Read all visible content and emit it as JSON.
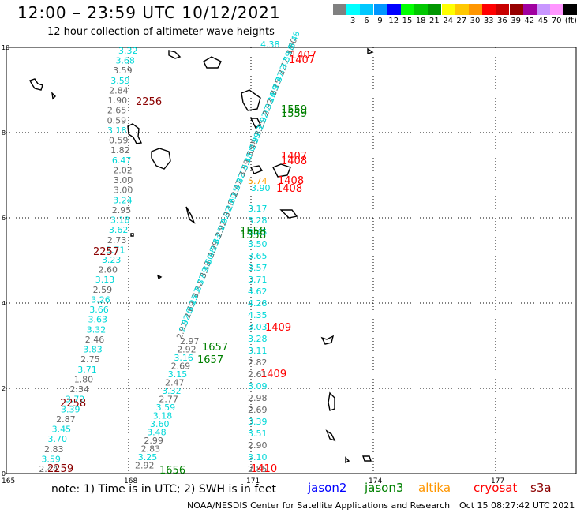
{
  "header": {
    "title": "12:00 – 23:59 UTC 10/12/2021",
    "subtitle": "12 hour collection of altimeter wave heights"
  },
  "scale": {
    "unit": "(ft)",
    "items": [
      {
        "label": "",
        "color": "#808080"
      },
      {
        "label": "3",
        "color": "#00ffff"
      },
      {
        "label": "6",
        "color": "#00c8ff"
      },
      {
        "label": "9",
        "color": "#0096ff"
      },
      {
        "label": "12",
        "color": "#0000ff"
      },
      {
        "label": "15",
        "color": "#00ff00"
      },
      {
        "label": "18",
        "color": "#00c800"
      },
      {
        "label": "21",
        "color": "#009600"
      },
      {
        "label": "24",
        "color": "#ffff00"
      },
      {
        "label": "27",
        "color": "#ffc800"
      },
      {
        "label": "30",
        "color": "#ff9600"
      },
      {
        "label": "33",
        "color": "#ff0000"
      },
      {
        "label": "36",
        "color": "#c80000"
      },
      {
        "label": "39",
        "color": "#960000"
      },
      {
        "label": "42",
        "color": "#a000a0"
      },
      {
        "label": "45",
        "color": "#c896ff"
      },
      {
        "label": "70",
        "color": "#ff96ff"
      },
      {
        "label": "",
        "color": "#000000"
      }
    ]
  },
  "axes": {
    "x_ticks": [
      "165",
      "168",
      "171",
      "174",
      "177"
    ],
    "y_ticks": [
      "0",
      "2",
      "4",
      "6",
      "8",
      "10"
    ]
  },
  "tracks": {
    "left_track": [
      {
        "v": "3.32",
        "c": "#00d8d8"
      },
      {
        "v": "3.68",
        "c": "#00d8d8"
      },
      {
        "v": "3.59",
        "c": "#666666"
      },
      {
        "v": "3.59",
        "c": "#00d8d8"
      },
      {
        "v": "2.84",
        "c": "#666666"
      },
      {
        "v": "1.90",
        "c": "#666666"
      },
      {
        "v": "2.65",
        "c": "#666666"
      },
      {
        "v": "0.59",
        "c": "#666666"
      },
      {
        "v": "3.18",
        "c": "#00d8d8"
      },
      {
        "v": "0.59",
        "c": "#666666"
      },
      {
        "v": "1.82",
        "c": "#666666"
      },
      {
        "v": "6.47",
        "c": "#00d8d8"
      },
      {
        "v": "2.02",
        "c": "#666666"
      },
      {
        "v": "3.00",
        "c": "#666666"
      },
      {
        "v": "3.00",
        "c": "#666666"
      },
      {
        "v": "3.24",
        "c": "#00d8d8"
      },
      {
        "v": "2.95",
        "c": "#666666"
      },
      {
        "v": "3.18",
        "c": "#00d8d8"
      },
      {
        "v": "3.62",
        "c": "#00d8d8"
      },
      {
        "v": "2.73",
        "c": "#666666"
      },
      {
        "v": "3.71",
        "c": "#00d8d8"
      },
      {
        "v": "3.23",
        "c": "#00d8d8"
      },
      {
        "v": "2.60",
        "c": "#666666"
      },
      {
        "v": "3.13",
        "c": "#00d8d8"
      },
      {
        "v": "2.59",
        "c": "#666666"
      },
      {
        "v": "3.26",
        "c": "#00d8d8"
      },
      {
        "v": "3.66",
        "c": "#00d8d8"
      },
      {
        "v": "3.63",
        "c": "#00d8d8"
      },
      {
        "v": "3.32",
        "c": "#00d8d8"
      },
      {
        "v": "2.46",
        "c": "#666666"
      },
      {
        "v": "3.83",
        "c": "#00d8d8"
      },
      {
        "v": "2.75",
        "c": "#666666"
      },
      {
        "v": "3.71",
        "c": "#00d8d8"
      },
      {
        "v": "1.80",
        "c": "#666666"
      },
      {
        "v": "2.34",
        "c": "#666666"
      },
      {
        "v": "3.72",
        "c": "#00d8d8"
      },
      {
        "v": "3.39",
        "c": "#00d8d8"
      },
      {
        "v": "2.87",
        "c": "#666666"
      },
      {
        "v": "3.45",
        "c": "#00d8d8"
      },
      {
        "v": "3.70",
        "c": "#00d8d8"
      },
      {
        "v": "2.83",
        "c": "#666666"
      },
      {
        "v": "3.59",
        "c": "#00d8d8"
      },
      {
        "v": "2.44",
        "c": "#666666"
      }
    ],
    "diag_track": [
      {
        "v": "2.97",
        "c": "#666666"
      },
      {
        "v": "2.92",
        "c": "#666666"
      },
      {
        "v": "3.16",
        "c": "#00d8d8"
      },
      {
        "v": "2.69",
        "c": "#666666"
      },
      {
        "v": "3.15",
        "c": "#00d8d8"
      },
      {
        "v": "2.47",
        "c": "#666666"
      },
      {
        "v": "3.32",
        "c": "#00d8d8"
      },
      {
        "v": "2.77",
        "c": "#666666"
      },
      {
        "v": "3.59",
        "c": "#00d8d8"
      },
      {
        "v": "3.18",
        "c": "#00d8d8"
      },
      {
        "v": "3.60",
        "c": "#00d8d8"
      },
      {
        "v": "3.48",
        "c": "#00d8d8"
      },
      {
        "v": "2.99",
        "c": "#666666"
      },
      {
        "v": "2.83",
        "c": "#666666"
      },
      {
        "v": "3.25",
        "c": "#00d8d8"
      },
      {
        "v": "2.92",
        "c": "#666666"
      }
    ],
    "right_track": [
      {
        "v": "3.17",
        "c": "#00d8d8"
      },
      {
        "v": "3.28",
        "c": "#00d8d8"
      },
      {
        "v": "3.45",
        "c": "#00d8d8"
      },
      {
        "v": "3.50",
        "c": "#00d8d8"
      },
      {
        "v": "3.65",
        "c": "#00d8d8"
      },
      {
        "v": "3.57",
        "c": "#00d8d8"
      },
      {
        "v": "3.71",
        "c": "#00d8d8"
      },
      {
        "v": "4.62",
        "c": "#00d8d8"
      },
      {
        "v": "4.28",
        "c": "#00d8d8"
      },
      {
        "v": "4.35",
        "c": "#00d8d8"
      },
      {
        "v": "3.03",
        "c": "#00d8d8"
      },
      {
        "v": "3.28",
        "c": "#00d8d8"
      },
      {
        "v": "3.11",
        "c": "#00d8d8"
      },
      {
        "v": "2.82",
        "c": "#666666"
      },
      {
        "v": "2.61",
        "c": "#666666"
      },
      {
        "v": "3.09",
        "c": "#00d8d8"
      },
      {
        "v": "2.98",
        "c": "#666666"
      },
      {
        "v": "2.69",
        "c": "#666666"
      },
      {
        "v": "3.39",
        "c": "#00d8d8"
      },
      {
        "v": "3.51",
        "c": "#00d8d8"
      },
      {
        "v": "2.90",
        "c": "#666666"
      },
      {
        "v": "3.10",
        "c": "#00d8d8"
      },
      {
        "v": "2.85",
        "c": "#666666"
      }
    ],
    "special": [
      {
        "v": "5.74",
        "c": "#ffa000"
      },
      {
        "v": "3.90",
        "c": "#00d8d8"
      },
      {
        "v": "4.38",
        "c": "#00d8d8"
      }
    ]
  },
  "time_labels": [
    {
      "v": "2256",
      "c": "#8b0000"
    },
    {
      "v": "2257",
      "c": "#8b0000"
    },
    {
      "v": "2258",
      "c": "#8b0000"
    },
    {
      "v": "2259",
      "c": "#8b0000"
    },
    {
      "v": "1407",
      "c": "#ff0000"
    },
    {
      "v": "1407",
      "c": "#ff0000"
    },
    {
      "v": "1559",
      "c": "#008000"
    },
    {
      "v": "1559",
      "c": "#008000"
    },
    {
      "v": "1407",
      "c": "#ff0000"
    },
    {
      "v": "1408",
      "c": "#ff0000"
    },
    {
      "v": "1408",
      "c": "#ff0000"
    },
    {
      "v": "1408",
      "c": "#ff0000"
    },
    {
      "v": "1558",
      "c": "#008000"
    },
    {
      "v": "1558",
      "c": "#008000"
    },
    {
      "v": "1409",
      "c": "#ff0000"
    },
    {
      "v": "1657",
      "c": "#008000"
    },
    {
      "v": "1657",
      "c": "#008000"
    },
    {
      "v": "1409",
      "c": "#ff0000"
    },
    {
      "v": "1656",
      "c": "#008000"
    },
    {
      "v": "1410",
      "c": "#ff0000"
    }
  ],
  "footer": {
    "note": "note:  1) Time is in UTC;  2) SWH is in feet",
    "legend": [
      {
        "label": "jason2",
        "color": "#0000ff"
      },
      {
        "label": "jason3",
        "color": "#008000"
      },
      {
        "label": "altika",
        "color": "#ff9600"
      },
      {
        "label": "cryosat",
        "color": "#ff0000"
      },
      {
        "label": "s3a",
        "color": "#8b0000"
      }
    ],
    "credit": "NOAA/NESDIS Center for Satellite Applications and Research",
    "generated": "Oct 15 08:27:42 UTC 2021"
  }
}
